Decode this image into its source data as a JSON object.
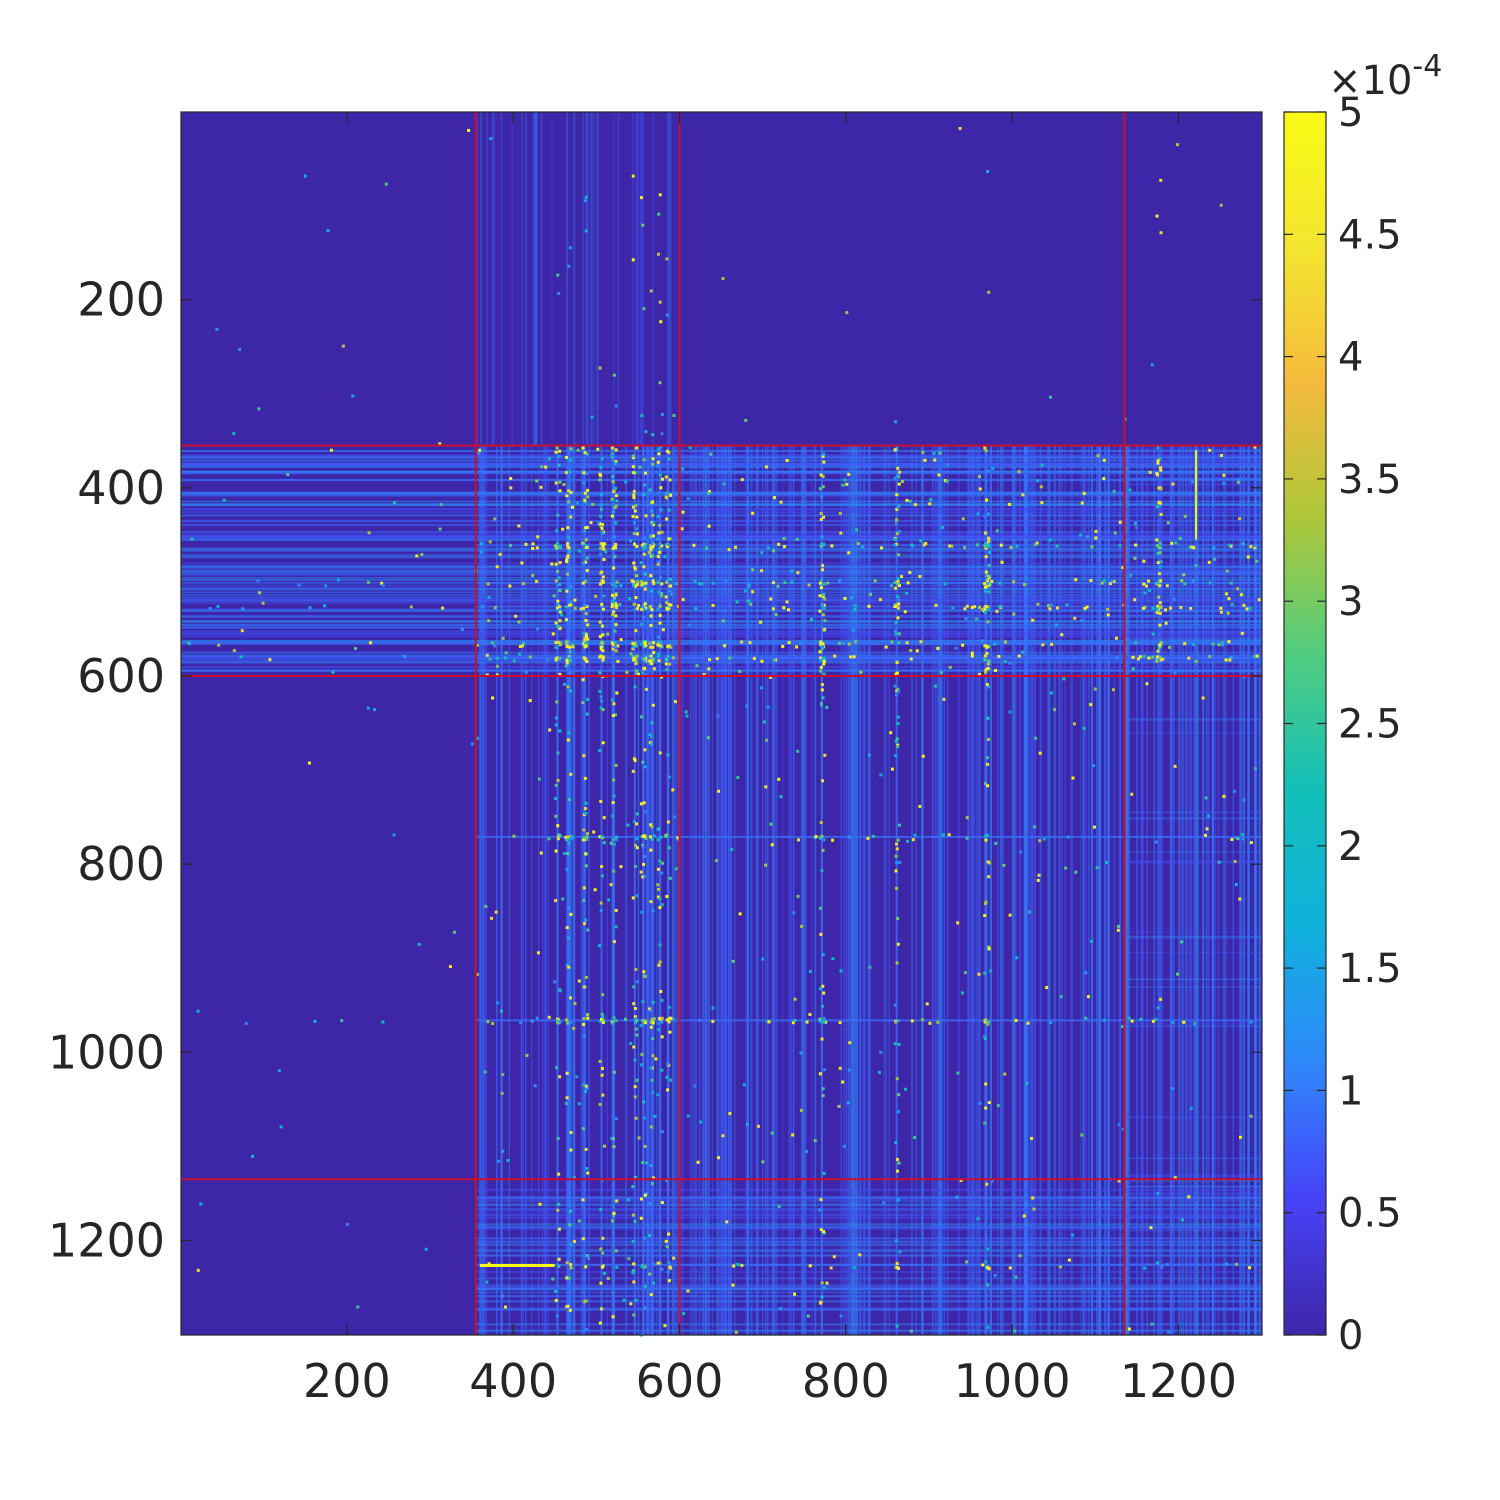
{
  "chart_data": {
    "type": "heatmap",
    "title": "",
    "xlabel": "",
    "ylabel": "",
    "x_range": [
      1,
      1300
    ],
    "y_range": [
      1,
      1300
    ],
    "y_reversed": true,
    "xticks": [
      "200",
      "400",
      "600",
      "800",
      "1000",
      "1200"
    ],
    "yticks": [
      "200",
      "400",
      "600",
      "800",
      "1000",
      "1200"
    ],
    "colorbar": {
      "limits": [
        0,
        0.0005
      ],
      "ticks": [
        "0",
        "0.5",
        "1",
        "1.5",
        "2",
        "2.5",
        "3",
        "3.5",
        "4",
        "4.5",
        "5"
      ],
      "exponent_base": "10",
      "exponent": "-4",
      "multiplier_symbol": "×",
      "colormap": "parula",
      "colors": [
        "#3e26a8",
        "#4743f8",
        "#2f88fb",
        "#10b1dc",
        "#12bfb9",
        "#50cc80",
        "#adc73a",
        "#f4ba3c",
        "#f3e52f",
        "#f9fb15"
      ]
    },
    "block_boundaries": [
      355,
      600,
      1135
    ],
    "block_boundary_color": "#c8102e",
    "background_value": 1e-05,
    "background_color": "#3e26a8",
    "blocks": [
      {
        "rows": "1-355",
        "cols": "1-355",
        "density": "very sparse"
      },
      {
        "rows": "355-600",
        "cols": "355-1300",
        "density": "dense, many high values"
      },
      {
        "rows": "600-1135",
        "cols": "355-1135",
        "density": "moderate"
      },
      {
        "rows": "1135-1300",
        "cols": "1135-1300",
        "density": "moderate, diagonal structure"
      }
    ],
    "hot_columns": [
      452,
      465,
      485,
      505,
      520,
      545,
      555,
      565,
      575,
      585,
      770,
      860,
      968,
      1175
    ],
    "hot_rows": [
      460,
      500,
      525,
      565,
      580,
      770,
      965,
      1225
    ]
  }
}
